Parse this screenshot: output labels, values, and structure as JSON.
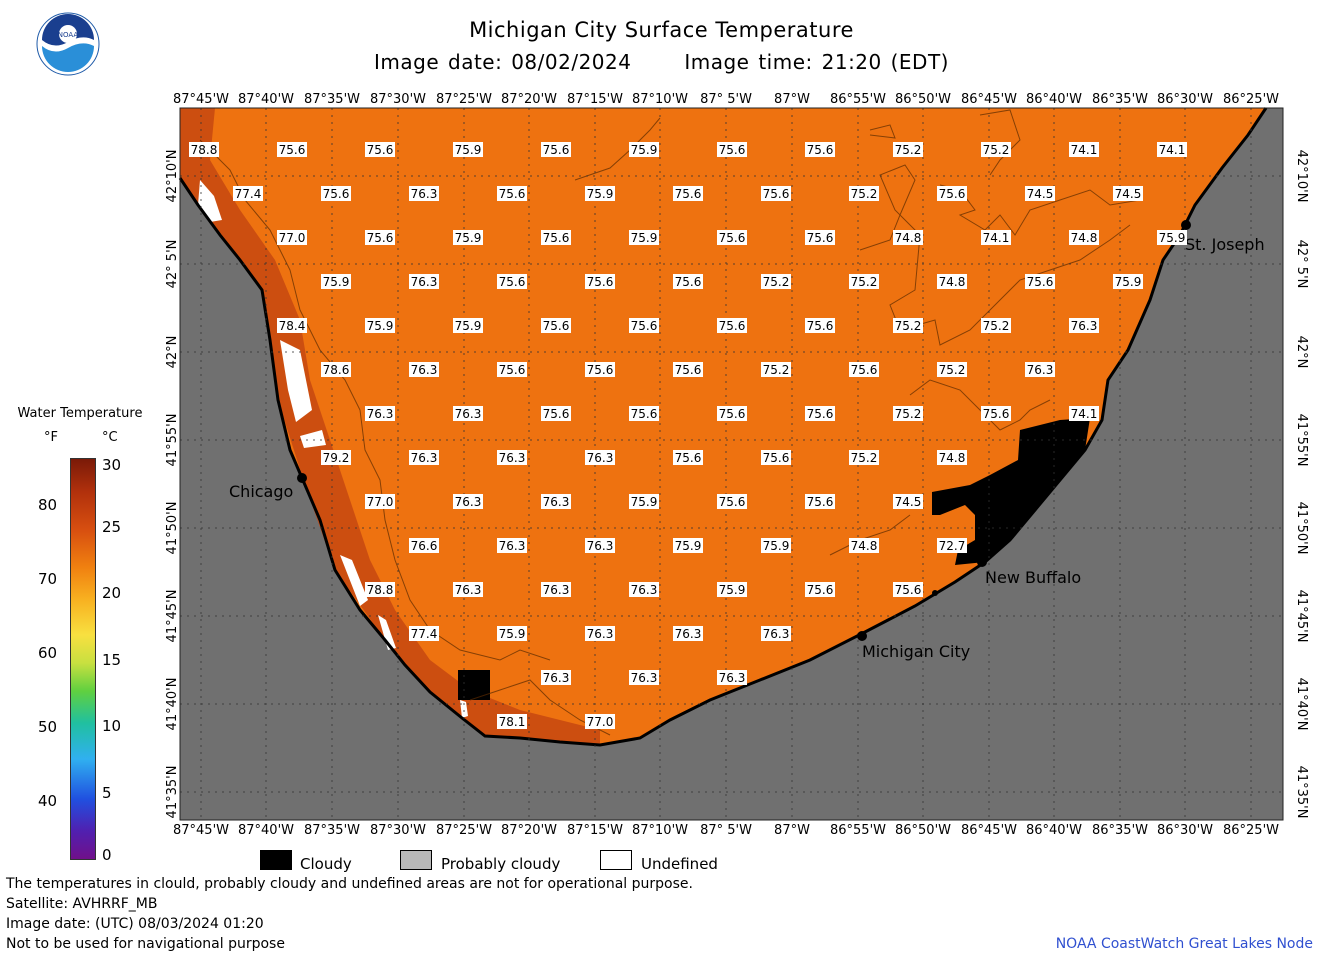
{
  "header": {
    "title": "Michigan City Surface Temperature",
    "image_date_label": "Image date: 08/02/2024",
    "image_time_label": "Image time: 21:20 (EDT)",
    "logo_text": "NOAA"
  },
  "axes": {
    "longitude_labels": [
      "87°45'W",
      "87°40'W",
      "87°35'W",
      "87°30'W",
      "87°25'W",
      "87°20'W",
      "87°15'W",
      "87°10'W",
      "87° 5'W",
      "87°W",
      "86°55'W",
      "86°50'W",
      "86°45'W",
      "86°40'W",
      "86°35'W",
      "86°30'W",
      "86°25'W"
    ],
    "latitude_labels": [
      "42°10'N",
      "42° 5'N",
      "42°N",
      "41°55'N",
      "41°50'N",
      "41°45'N",
      "41°40'N",
      "41°35'N"
    ]
  },
  "places": {
    "chicago": "Chicago",
    "st_joseph": "St. Joseph",
    "new_buffalo": "New Buffalo",
    "michigan_city": "Michigan City"
  },
  "legend": {
    "title": "Water Temperature",
    "unit_f": "°F",
    "unit_c": "°C",
    "f_ticks": [
      "80",
      "70",
      "60",
      "50",
      "40"
    ],
    "c_ticks": [
      "30",
      "25",
      "20",
      "15",
      "10",
      "5",
      "0"
    ],
    "cloudy": "Cloudy",
    "probably_cloudy": "Probably cloudy",
    "undefined": "Undefined"
  },
  "colors": {
    "water": "#ee7210",
    "water_warm": "#c64810",
    "land": "#707070",
    "cloud": "#000000",
    "undefined": "#ffffff"
  },
  "footer": {
    "note": "The temperatures in clould, probably cloudy and undefined areas are not for operational purpose.",
    "satellite": "Satellite: AVHRRF_MB",
    "utc_date": "Image date: (UTC) 08/03/2024  01:20",
    "nav_warning": "Not to be used for navigational purpose",
    "credit": "NOAA CoastWatch Great Lakes Node"
  },
  "temperature_labels": [
    [
      "78.8",
      "75.6",
      "75.6",
      "75.9",
      "75.6",
      "75.9",
      "75.6",
      "75.6",
      "75.2",
      "75.2",
      "74.1",
      "74.1"
    ],
    [
      "77.4",
      "75.6",
      "76.3",
      "75.6",
      "75.9",
      "75.6",
      "75.6",
      "75.2",
      "75.6",
      "74.5",
      "74.5"
    ],
    [
      "77.0",
      "75.6",
      "75.9",
      "75.6",
      "75.9",
      "75.6",
      "75.6",
      "74.8",
      "74.1",
      "74.8",
      "75.9"
    ],
    [
      "75.9",
      "76.3",
      "75.6",
      "75.6",
      "75.6",
      "75.2",
      "75.2",
      "74.8",
      "75.6",
      "75.9"
    ],
    [
      "78.4",
      "75.9",
      "75.9",
      "75.6",
      "75.6",
      "75.6",
      "75.6",
      "75.2",
      "75.2",
      "76.3"
    ],
    [
      "78.6",
      "76.3",
      "75.6",
      "75.6",
      "75.6",
      "75.2",
      "75.6",
      "75.2",
      "76.3"
    ],
    [
      "76.3",
      "76.3",
      "75.6",
      "75.6",
      "75.6",
      "75.6",
      "75.2",
      "75.6",
      "74.1"
    ],
    [
      "79.2",
      "76.3",
      "76.3",
      "76.3",
      "75.6",
      "75.6",
      "75.2",
      "74.8"
    ],
    [
      "77.0",
      "76.3",
      "76.3",
      "75.9",
      "75.6",
      "75.6",
      "74.5"
    ],
    [
      "76.6",
      "76.3",
      "76.3",
      "75.9",
      "75.9",
      "74.8",
      "72.7"
    ],
    [
      "78.8",
      "76.3",
      "76.3",
      "76.3",
      "75.9",
      "75.6",
      "75.6"
    ],
    [
      "77.4",
      "75.9",
      "76.3",
      "76.3",
      "76.3"
    ],
    [
      "76.3",
      "76.3",
      "76.3"
    ],
    [
      "78.1",
      "77.0"
    ]
  ]
}
